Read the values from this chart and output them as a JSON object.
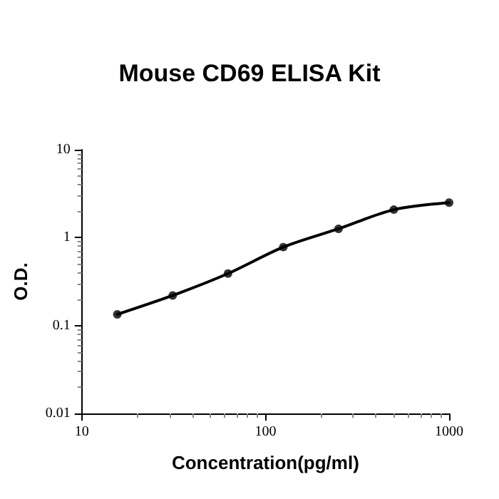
{
  "chart_data": {
    "type": "scatter",
    "title": "Mouse CD69 ELISA Kit",
    "xlabel": "Concentration(pg/ml)",
    "ylabel": "O.D.",
    "log": "xy",
    "xlim": [
      10,
      1000
    ],
    "xticks": [
      10,
      100,
      1000
    ],
    "ylim": [
      0.01,
      10
    ],
    "yticks": [
      0.01,
      0.1,
      1,
      10
    ],
    "grid": false,
    "series": [
      {
        "type": "line",
        "color": "#000000",
        "marker": "none",
        "line_style": "solid",
        "x": [
          15.6,
          31.25,
          62.5,
          125,
          250,
          500,
          1000
        ],
        "values": [
          0.134,
          0.22,
          0.39,
          0.78,
          1.26,
          2.08,
          2.5
        ]
      },
      {
        "color": "#000000",
        "marker": "circle",
        "x": [
          15.6,
          31.25,
          62.5,
          125,
          250,
          500,
          1000
        ],
        "values": [
          0.134,
          0.22,
          0.39,
          0.78,
          1.26,
          2.08,
          2.5
        ]
      }
    ]
  }
}
